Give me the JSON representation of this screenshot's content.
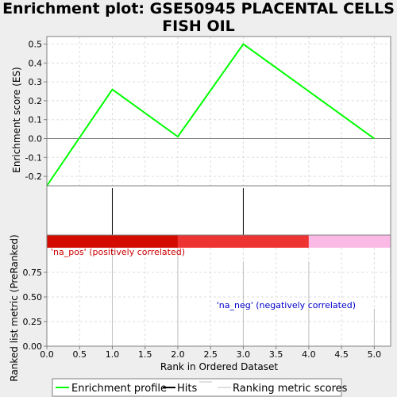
{
  "title_line1": "Enrichment plot: GSE50945 PLACENTAL CELLS",
  "title_line2": "FISH OIL",
  "chart_data": {
    "type": "line",
    "xlabel": "Rank in Ordered Dataset",
    "xlim": [
      0,
      5.25
    ],
    "xticks": [
      0.0,
      0.5,
      1.0,
      1.5,
      2.0,
      2.5,
      3.0,
      3.5,
      4.0,
      4.5,
      5.0
    ],
    "xtick_labels": [
      "0.0",
      "0.5",
      "1.0",
      "1.5",
      "2.0",
      "2.5",
      "3.0",
      "3.5",
      "4.0",
      "4.5",
      "5.0"
    ],
    "es_panel": {
      "ylabel": "Enrichment score (ES)",
      "ylim": [
        -0.25,
        0.54
      ],
      "yticks": [
        -0.2,
        -0.1,
        0.0,
        0.1,
        0.2,
        0.3,
        0.4,
        0.5
      ],
      "ytick_labels": [
        "-0.2",
        "-0.1",
        "0.0",
        "0.1",
        "0.2",
        "0.3",
        "0.4",
        "0.5"
      ],
      "series": [
        {
          "name": "Enrichment profile",
          "color": "#00ff00",
          "x": [
            0,
            1,
            2,
            3,
            5
          ],
          "y": [
            -0.25,
            0.26,
            0.01,
            0.5,
            0.0
          ]
        }
      ]
    },
    "hits": {
      "name": "Hits",
      "x": [
        1,
        3
      ]
    },
    "color_bar": [
      {
        "from": 0,
        "to": 2,
        "color": "#d40c00"
      },
      {
        "from": 2,
        "to": 4,
        "color": "#ee3333"
      },
      {
        "from": 4,
        "to": 5.25,
        "color": "#fbbae6"
      }
    ],
    "rank_panel": {
      "ylabel": "Ranked list metric (PreRanked)",
      "ylim": [
        0,
        1.0
      ],
      "yticks": [
        0.0,
        0.25,
        0.5,
        0.75
      ],
      "ytick_labels": [
        "0.00",
        "0.25",
        "0.50",
        "0.75"
      ],
      "series": [
        {
          "name": "Ranking metric scores",
          "color": "#c0c0c0",
          "x": [
            1,
            2,
            3,
            4,
            5
          ],
          "y": [
            1.0,
            1.0,
            0.86,
            0.86,
            0.38
          ]
        }
      ],
      "annotations": [
        {
          "text": "'na_pos' (positively correlated)",
          "color": "#cc0000"
        },
        {
          "text": "'na_neg' (negatively correlated)",
          "color": "#0000cc"
        }
      ]
    },
    "legend": {
      "placement": "bottom",
      "items": [
        {
          "label": "Enrichment profile",
          "color": "#00ff00"
        },
        {
          "label": "Hits",
          "color": "#000000"
        },
        {
          "label": "Ranking metric scores",
          "color": "#c0c0c0"
        }
      ]
    }
  }
}
